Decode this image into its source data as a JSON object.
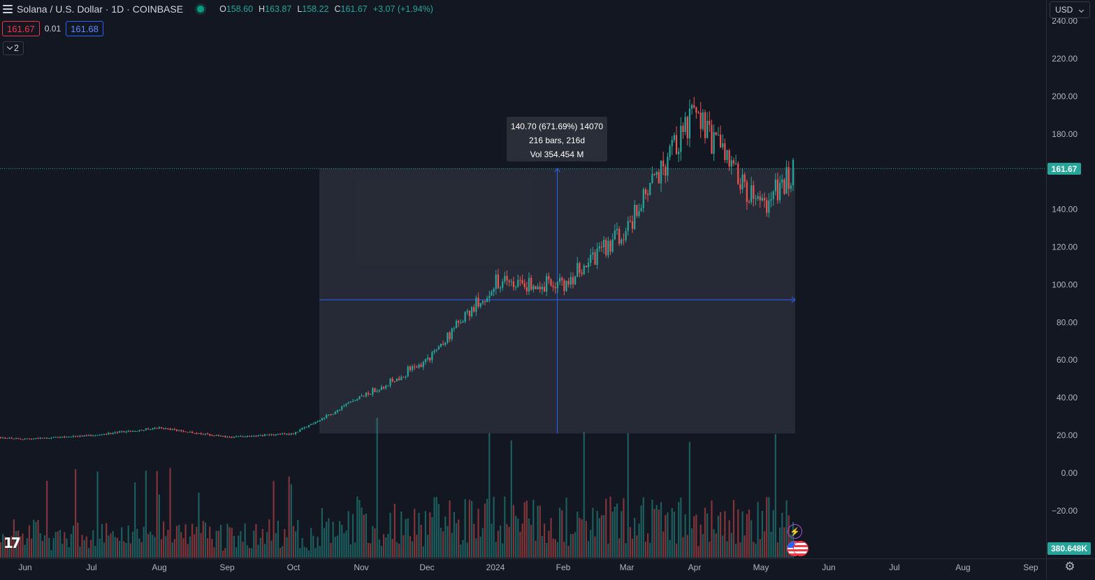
{
  "header": {
    "symbol_title": "Solana / U.S. Dollar · 1D · COINBASE",
    "ohlc": [
      {
        "key": "O",
        "value": "158.60"
      },
      {
        "key": "H",
        "value": "163.87"
      },
      {
        "key": "L",
        "value": "158.22"
      },
      {
        "key": "C",
        "value": "161.67"
      },
      {
        "key": "",
        "value": "+3.07 (+1.94%)"
      }
    ]
  },
  "trade": {
    "sell_price": "161.67",
    "spread": "0.01",
    "buy_price": "161.68"
  },
  "indicators_toggle": {
    "count": "2"
  },
  "currency": {
    "selected": "USD"
  },
  "measure": {
    "line1": "140.70 (671.69%) 14070",
    "line2": "216 bars, 216d",
    "line3": "Vol 354.454 M",
    "from_price": 21.0,
    "to_price": 161.67,
    "from_month": "Oct",
    "to_month": "May"
  },
  "price_axis": {
    "last_price_label": "161.67",
    "volume_label": "380.648K"
  },
  "chart_data": {
    "type": "candlestick",
    "symbol": "SOLUSD",
    "interval": "1D",
    "y_ticks": [
      "240.00",
      "220.00",
      "200.00",
      "180.00",
      "160.00",
      "140.00",
      "120.00",
      "100.00",
      "80.00",
      "60.00",
      "40.00",
      "20.00",
      "0.00",
      "−20.00"
    ],
    "y_tick_values": [
      240,
      220,
      200,
      180,
      160,
      140,
      120,
      100,
      80,
      60,
      40,
      20,
      0,
      -20
    ],
    "x_ticks": [
      "Jun",
      "Jul",
      "Aug",
      "Sep",
      "Oct",
      "Nov",
      "Dec",
      "2024",
      "Feb",
      "Mar",
      "Apr",
      "May",
      "Jun",
      "Jul",
      "Aug",
      "Sep"
    ],
    "ylim": [
      -25,
      243
    ],
    "last_close": 161.67,
    "approx_closes_by_month": [
      {
        "month": "Jun",
        "close": 18
      },
      {
        "month": "Jul",
        "close": 20
      },
      {
        "month": "Aug",
        "close": 24
      },
      {
        "month": "Sep",
        "close": 19
      },
      {
        "month": "Oct",
        "close": 21
      },
      {
        "month": "Nov",
        "close": 40
      },
      {
        "month": "Dec",
        "close": 60
      },
      {
        "month": "2024",
        "close": 101
      },
      {
        "month": "Feb",
        "close": 100
      },
      {
        "month": "Mar",
        "close": 130
      },
      {
        "month": "Apr",
        "close": 190
      },
      {
        "month": "May",
        "close": 140
      },
      {
        "month": "May-end",
        "close": 161.67
      }
    ],
    "colors": {
      "up": "#26a69a",
      "down": "#ef5350",
      "measure_fill": "#2a2e39",
      "measure_line": "#2962ff",
      "last_price_line": "#26a69a"
    }
  }
}
